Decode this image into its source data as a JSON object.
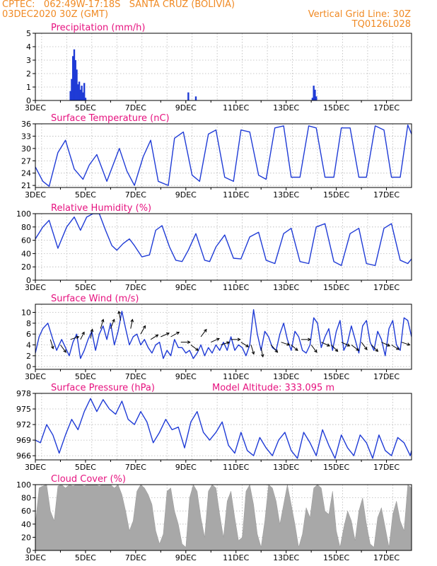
{
  "header": {
    "line1_left": "CPTEC:   062:49W-17:18S   SANTA CRUZ (BOLIVIA)",
    "line2_left": "03DEC2020 30Z (GMT)",
    "line2_right": "Vertical Grid Line: 30Z",
    "line3_right": "TQ0126L028"
  },
  "colors": {
    "header_text": "#f08a24",
    "panel_title": "#e6127f",
    "series": "#1f3bd6",
    "bars": "#1f3bd6",
    "cloud_fill": "#a8a8a8",
    "arrows": "#000000"
  },
  "chart_data": [
    {
      "id": "precip",
      "type": "bar",
      "title": "Precipitation (mm/h)",
      "ylim": [
        0,
        5
      ],
      "yticks": [
        0,
        1,
        2,
        3,
        4,
        5
      ],
      "xlim": [
        3.0,
        18.0
      ],
      "xticks": [
        "3DEC",
        "5DEC",
        "7DEC",
        "9DEC",
        "11DEC",
        "13DEC",
        "15DEC",
        "17DEC"
      ],
      "grid": true,
      "x": [
        4.4,
        4.45,
        4.5,
        4.55,
        4.6,
        4.65,
        4.7,
        4.75,
        4.8,
        4.85,
        4.9,
        4.95,
        5.0,
        9.1,
        9.4,
        14.05,
        14.1,
        14.15,
        14.2
      ],
      "values": [
        0.7,
        1.6,
        3.3,
        3.8,
        3.0,
        2.3,
        1.2,
        1.4,
        0.8,
        1.1,
        0.6,
        1.3,
        0.2,
        0.6,
        0.3,
        0.2,
        1.1,
        0.8,
        0.3
      ]
    },
    {
      "id": "temp",
      "type": "line",
      "title": "Surface Temperature (nC)",
      "ylim": [
        20.5,
        36
      ],
      "yticks": [
        21,
        24,
        27,
        30,
        33,
        36
      ],
      "xlim": [
        3.0,
        18.0
      ],
      "xticks": [
        "3DEC",
        "5DEC",
        "7DEC",
        "9DEC",
        "11DEC",
        "13DEC",
        "15DEC",
        "17DEC"
      ],
      "grid": true,
      "x": [
        3.0,
        3.3,
        3.55,
        3.9,
        4.2,
        4.55,
        4.9,
        5.15,
        5.45,
        5.85,
        6.1,
        6.35,
        6.65,
        6.95,
        7.3,
        7.6,
        7.9,
        8.3,
        8.55,
        8.9,
        9.25,
        9.55,
        9.9,
        10.2,
        10.55,
        10.9,
        11.2,
        11.55,
        11.9,
        12.2,
        12.55,
        12.9,
        13.2,
        13.55,
        13.9,
        14.2,
        14.55,
        14.9,
        15.2,
        15.55,
        15.9,
        16.2,
        16.55,
        16.9,
        17.2,
        17.55,
        17.85,
        18.0
      ],
      "values": [
        25.5,
        22,
        20.8,
        29,
        32,
        25,
        22.5,
        26,
        28.5,
        22,
        26,
        30,
        24.5,
        21,
        28,
        32,
        22,
        21,
        32.5,
        34,
        23.5,
        22,
        33.5,
        34.5,
        23,
        22,
        34.5,
        34,
        23.5,
        22.5,
        35,
        35.5,
        23,
        23,
        35.5,
        35,
        23,
        23,
        35,
        35,
        23,
        23,
        35.5,
        34.5,
        23,
        23,
        35.7,
        33.5
      ]
    },
    {
      "id": "rh",
      "type": "line",
      "title": "Relative Humidity (%)",
      "ylim": [
        0,
        100
      ],
      "yticks": [
        0,
        20,
        40,
        60,
        80,
        100
      ],
      "xlim": [
        3.0,
        18.0
      ],
      "xticks": [
        "3DEC",
        "5DEC",
        "7DEC",
        "9DEC",
        "11DEC",
        "13DEC",
        "15DEC",
        "17DEC"
      ],
      "grid": true,
      "x": [
        3.0,
        3.3,
        3.55,
        3.9,
        4.25,
        4.55,
        4.8,
        5.05,
        5.3,
        5.55,
        5.8,
        6.05,
        6.25,
        6.5,
        6.75,
        6.95,
        7.25,
        7.55,
        7.8,
        8.05,
        8.35,
        8.6,
        8.85,
        9.1,
        9.4,
        9.75,
        9.95,
        10.2,
        10.55,
        10.9,
        11.2,
        11.55,
        11.9,
        12.2,
        12.55,
        12.9,
        13.2,
        13.55,
        13.9,
        14.2,
        14.55,
        14.9,
        15.2,
        15.55,
        15.9,
        16.2,
        16.55,
        16.9,
        17.2,
        17.55,
        17.85,
        18.0
      ],
      "values": [
        62,
        80,
        90,
        48,
        80,
        95,
        75,
        95,
        100,
        100,
        75,
        52,
        45,
        55,
        62,
        52,
        35,
        38,
        75,
        82,
        50,
        30,
        28,
        45,
        70,
        30,
        28,
        50,
        68,
        33,
        32,
        65,
        72,
        30,
        25,
        70,
        78,
        28,
        25,
        80,
        85,
        28,
        22,
        70,
        78,
        25,
        22,
        78,
        85,
        30,
        25,
        32
      ]
    },
    {
      "id": "wind",
      "type": "line",
      "title": "Surface Wind (m/s)",
      "ylim": [
        -0.5,
        11.5
      ],
      "yticks": [
        0,
        2,
        4,
        6,
        8,
        10
      ],
      "xlim": [
        3.0,
        18.0
      ],
      "xticks": [
        "3DEC",
        "5DEC",
        "7DEC",
        "9DEC",
        "11DEC",
        "13DEC",
        "15DEC",
        "17DEC"
      ],
      "grid": true,
      "x": [
        3.0,
        3.15,
        3.3,
        3.5,
        3.7,
        3.85,
        4.05,
        4.2,
        4.35,
        4.5,
        4.65,
        4.8,
        4.95,
        5.1,
        5.25,
        5.4,
        5.55,
        5.7,
        5.85,
        6.0,
        6.15,
        6.3,
        6.45,
        6.6,
        6.75,
        6.9,
        7.05,
        7.2,
        7.35,
        7.5,
        7.65,
        7.8,
        7.95,
        8.1,
        8.25,
        8.4,
        8.55,
        8.7,
        8.85,
        9.0,
        9.15,
        9.3,
        9.45,
        9.6,
        9.75,
        9.9,
        10.05,
        10.2,
        10.35,
        10.5,
        10.65,
        10.8,
        10.95,
        11.1,
        11.25,
        11.4,
        11.55,
        11.7,
        11.85,
        12.0,
        12.15,
        12.3,
        12.45,
        12.6,
        12.75,
        12.9,
        13.05,
        13.2,
        13.35,
        13.5,
        13.65,
        13.8,
        13.95,
        14.1,
        14.25,
        14.4,
        14.55,
        14.7,
        14.85,
        15.0,
        15.15,
        15.3,
        15.45,
        15.6,
        15.75,
        15.9,
        16.05,
        16.2,
        16.35,
        16.5,
        16.65,
        16.8,
        16.95,
        17.1,
        17.25,
        17.4,
        17.55,
        17.7,
        17.85,
        18.0
      ],
      "values": [
        2.5,
        5.5,
        7.0,
        8.0,
        5.0,
        3.0,
        5.0,
        3.5,
        2.0,
        4.5,
        6.0,
        1.5,
        3.0,
        5.0,
        6.5,
        3.0,
        6.0,
        7.5,
        5.0,
        8.0,
        4.0,
        6.5,
        10.2,
        7.0,
        4.0,
        5.5,
        6.0,
        4.0,
        5.0,
        3.5,
        2.5,
        4.0,
        4.5,
        1.5,
        3.0,
        2.0,
        5.0,
        3.5,
        3.5,
        2.5,
        3.0,
        1.5,
        2.5,
        4.0,
        2.0,
        3.5,
        2.5,
        4.0,
        3.0,
        4.5,
        3.0,
        5.5,
        3.0,
        4.0,
        3.5,
        2.0,
        4.0,
        10.5,
        6.0,
        3.0,
        6.5,
        5.5,
        3.5,
        3.0,
        6.0,
        8.0,
        5.0,
        3.0,
        6.5,
        5.5,
        3.0,
        2.5,
        4.0,
        9.0,
        8.0,
        3.5,
        5.5,
        7.0,
        3.0,
        6.5,
        8.5,
        3.0,
        4.5,
        7.5,
        5.0,
        2.5,
        7.5,
        8.5,
        4.5,
        3.0,
        6.5,
        5.0,
        2.0,
        7.0,
        8.5,
        4.0,
        3.0,
        9.0,
        8.5,
        5.5
      ],
      "vectors": [
        {
          "x": 3.6,
          "y": 5.0,
          "u": 0.3,
          "v": -1.0
        },
        {
          "x": 4.0,
          "y": 4.0,
          "u": 0.6,
          "v": -0.8
        },
        {
          "x": 4.4,
          "y": 5.0,
          "u": 0.9,
          "v": 0.3
        },
        {
          "x": 4.8,
          "y": 5.0,
          "u": 0.4,
          "v": 0.8
        },
        {
          "x": 5.2,
          "y": 5.2,
          "u": 0.2,
          "v": 1.0
        },
        {
          "x": 5.6,
          "y": 7.0,
          "u": 0.3,
          "v": 1.0
        },
        {
          "x": 6.0,
          "y": 7.0,
          "u": 0.4,
          "v": 1.0
        },
        {
          "x": 6.4,
          "y": 8.5,
          "u": -0.2,
          "v": 1.0
        },
        {
          "x": 6.8,
          "y": 7.0,
          "u": 0.2,
          "v": 1.0
        },
        {
          "x": 7.2,
          "y": 6.0,
          "u": 0.5,
          "v": 0.9
        },
        {
          "x": 7.6,
          "y": 5.0,
          "u": 0.8,
          "v": 0.5
        },
        {
          "x": 8.0,
          "y": 5.5,
          "u": 0.9,
          "v": 0.4
        },
        {
          "x": 8.4,
          "y": 5.5,
          "u": 0.9,
          "v": 0.5
        },
        {
          "x": 8.8,
          "y": 4.5,
          "u": 1.0,
          "v": 0.0
        },
        {
          "x": 9.2,
          "y": 4.0,
          "u": 0.8,
          "v": -0.6
        },
        {
          "x": 9.6,
          "y": 5.5,
          "u": 0.6,
          "v": 0.8
        },
        {
          "x": 10.0,
          "y": 4.5,
          "u": 0.9,
          "v": 0.4
        },
        {
          "x": 10.4,
          "y": 4.0,
          "u": 0.9,
          "v": 0.3
        },
        {
          "x": 10.8,
          "y": 5.0,
          "u": 1.0,
          "v": 0.0
        },
        {
          "x": 11.2,
          "y": 4.5,
          "u": 0.8,
          "v": -0.5
        },
        {
          "x": 11.6,
          "y": 4.0,
          "u": 0.3,
          "v": -1.0
        },
        {
          "x": 12.0,
          "y": 3.5,
          "u": 0.2,
          "v": -1.0
        },
        {
          "x": 12.4,
          "y": 4.0,
          "u": 0.7,
          "v": -0.8
        },
        {
          "x": 12.8,
          "y": 4.5,
          "u": 0.9,
          "v": -0.3
        },
        {
          "x": 13.2,
          "y": 4.0,
          "u": 0.7,
          "v": -0.6
        },
        {
          "x": 13.6,
          "y": 5.0,
          "u": 1.0,
          "v": 0.0
        },
        {
          "x": 14.0,
          "y": 4.0,
          "u": 0.6,
          "v": -0.8
        },
        {
          "x": 14.4,
          "y": 4.5,
          "u": 0.9,
          "v": -0.4
        },
        {
          "x": 14.8,
          "y": 4.0,
          "u": 0.7,
          "v": -0.7
        },
        {
          "x": 15.2,
          "y": 4.5,
          "u": 0.9,
          "v": -0.4
        },
        {
          "x": 15.6,
          "y": 4.0,
          "u": 0.8,
          "v": -0.6
        },
        {
          "x": 16.0,
          "y": 4.5,
          "u": 0.6,
          "v": -0.8
        },
        {
          "x": 16.4,
          "y": 4.0,
          "u": 0.7,
          "v": -0.7
        },
        {
          "x": 16.8,
          "y": 4.5,
          "u": 0.9,
          "v": -0.4
        },
        {
          "x": 17.2,
          "y": 4.0,
          "u": 0.8,
          "v": -0.5
        },
        {
          "x": 17.6,
          "y": 4.5,
          "u": 0.9,
          "v": -0.3
        }
      ]
    },
    {
      "id": "pressure",
      "type": "line",
      "title": "Surface Pressure (hPa)",
      "extra_label": "Model Altitude: 333.095  m",
      "ylim": [
        965.2,
        978
      ],
      "yticks": [
        966,
        969,
        972,
        975,
        978
      ],
      "xlim": [
        3.0,
        18.0
      ],
      "xticks": [
        "3DEC",
        "5DEC",
        "7DEC",
        "9DEC",
        "11DEC",
        "13DEC",
        "15DEC",
        "17DEC"
      ],
      "grid": true,
      "x": [
        3.0,
        3.2,
        3.45,
        3.7,
        3.95,
        4.2,
        4.45,
        4.7,
        4.95,
        5.2,
        5.45,
        5.7,
        5.95,
        6.2,
        6.45,
        6.7,
        6.95,
        7.2,
        7.45,
        7.7,
        7.95,
        8.2,
        8.45,
        8.7,
        8.95,
        9.2,
        9.45,
        9.7,
        9.95,
        10.2,
        10.45,
        10.7,
        10.95,
        11.2,
        11.45,
        11.7,
        11.95,
        12.2,
        12.45,
        12.7,
        12.95,
        13.2,
        13.45,
        13.7,
        13.95,
        14.2,
        14.45,
        14.7,
        14.95,
        15.2,
        15.45,
        15.7,
        15.95,
        16.2,
        16.45,
        16.7,
        16.95,
        17.2,
        17.45,
        17.7,
        17.95,
        18.0
      ],
      "values": [
        969,
        968.5,
        972,
        970,
        966.5,
        970,
        973,
        971,
        974.5,
        977,
        974.5,
        976.8,
        975,
        974,
        976.5,
        973,
        972,
        974.5,
        972.5,
        968.5,
        970.5,
        973,
        971,
        971.5,
        967.5,
        972.5,
        974.5,
        970.5,
        969,
        970.5,
        972.5,
        968,
        966.5,
        970.5,
        967,
        966,
        969.5,
        967.5,
        966,
        969,
        970.5,
        967,
        965.5,
        970.5,
        968.5,
        966,
        971,
        968,
        965.5,
        970,
        967.5,
        966,
        970,
        968.5,
        965.5,
        970,
        967,
        966,
        969.5,
        968.5,
        966,
        967
      ]
    },
    {
      "id": "cloud",
      "type": "area",
      "title": "Cloud Cover (%)",
      "ylim": [
        0,
        100
      ],
      "yticks": [
        0,
        20,
        40,
        60,
        80,
        100
      ],
      "xlim": [
        3.0,
        18.0
      ],
      "xticks": [
        "3DEC",
        "5DEC",
        "7DEC",
        "9DEC",
        "11DEC",
        "13DEC",
        "15DEC",
        "17DEC"
      ],
      "grid": true,
      "x": [
        3.0,
        3.15,
        3.3,
        3.45,
        3.6,
        3.75,
        3.9,
        4.05,
        4.2,
        4.35,
        4.5,
        4.65,
        4.8,
        4.95,
        5.1,
        5.25,
        5.4,
        5.55,
        5.7,
        5.85,
        6.0,
        6.15,
        6.3,
        6.45,
        6.6,
        6.75,
        6.9,
        7.05,
        7.2,
        7.35,
        7.5,
        7.65,
        7.8,
        7.95,
        8.1,
        8.25,
        8.4,
        8.55,
        8.7,
        8.85,
        9.0,
        9.15,
        9.3,
        9.45,
        9.6,
        9.75,
        9.9,
        10.05,
        10.2,
        10.35,
        10.5,
        10.65,
        10.8,
        10.95,
        11.1,
        11.25,
        11.4,
        11.55,
        11.7,
        11.85,
        12.0,
        12.15,
        12.3,
        12.45,
        12.6,
        12.75,
        12.9,
        13.05,
        13.2,
        13.35,
        13.5,
        13.65,
        13.8,
        13.95,
        14.1,
        14.25,
        14.4,
        14.55,
        14.7,
        14.85,
        15.0,
        15.15,
        15.3,
        15.45,
        15.6,
        15.75,
        15.9,
        16.05,
        16.2,
        16.35,
        16.5,
        16.65,
        16.8,
        16.95,
        17.1,
        17.25,
        17.4,
        17.55,
        17.7,
        17.85,
        18.0
      ],
      "values": [
        40,
        95,
        98,
        100,
        60,
        45,
        98,
        100,
        95,
        100,
        98,
        100,
        100,
        98,
        100,
        100,
        100,
        98,
        100,
        100,
        100,
        95,
        100,
        85,
        60,
        30,
        45,
        90,
        100,
        95,
        85,
        70,
        30,
        10,
        25,
        90,
        95,
        60,
        40,
        10,
        5,
        80,
        100,
        90,
        50,
        20,
        90,
        100,
        95,
        55,
        20,
        75,
        90,
        50,
        15,
        20,
        90,
        100,
        70,
        25,
        5,
        45,
        100,
        95,
        75,
        40,
        70,
        100,
        70,
        40,
        5,
        25,
        65,
        50,
        95,
        100,
        95,
        60,
        55,
        90,
        30,
        5,
        35,
        60,
        45,
        15,
        60,
        80,
        40,
        10,
        5,
        50,
        65,
        35,
        5,
        55,
        75,
        45,
        30,
        100,
        95
      ]
    }
  ]
}
